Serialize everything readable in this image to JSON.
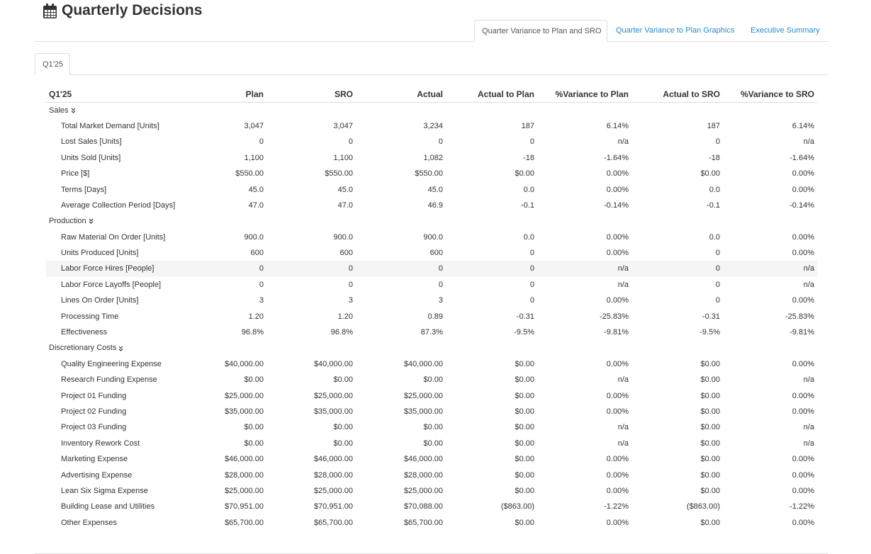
{
  "header": {
    "title": "Quarterly Decisions"
  },
  "tabs": [
    "Quarter Variance to Plan and SRO",
    "Quarter Variance to Plan Graphics",
    "Executive Summary"
  ],
  "subtabs": [
    "Q1'25"
  ],
  "table": {
    "columns": [
      "Q1'25",
      "Plan",
      "SRO",
      "Actual",
      "Actual to Plan",
      "%Variance to Plan",
      "Actual to SRO",
      "%Variance to SRO"
    ],
    "sections": [
      {
        "name": "Sales",
        "rows": [
          [
            "Total Market Demand [Units]",
            "3,047",
            "3,047",
            "3,234",
            "187",
            "6.14%",
            "187",
            "6.14%"
          ],
          [
            "Lost Sales [Units]",
            "0",
            "0",
            "0",
            "0",
            "n/a",
            "0",
            "n/a"
          ],
          [
            "Units Sold [Units]",
            "1,100",
            "1,100",
            "1,082",
            "-18",
            "-1.64%",
            "-18",
            "-1.64%"
          ],
          [
            "Price [$]",
            "$550.00",
            "$550.00",
            "$550.00",
            "$0.00",
            "0.00%",
            "$0.00",
            "0.00%"
          ],
          [
            "Terms [Days]",
            "45.0",
            "45.0",
            "45.0",
            "0.0",
            "0.00%",
            "0.0",
            "0.00%"
          ],
          [
            "Average Collection Period [Days]",
            "47.0",
            "47.0",
            "46.9",
            "-0.1",
            "-0.14%",
            "-0.1",
            "-0.14%"
          ]
        ]
      },
      {
        "name": "Production",
        "rows": [
          [
            "Raw Material On Order [Units]",
            "900.0",
            "900.0",
            "900.0",
            "0.0",
            "0.00%",
            "0.0",
            "0.00%"
          ],
          [
            "Units Produced [Units]",
            "600",
            "600",
            "600",
            "0",
            "0.00%",
            "0",
            "0.00%"
          ],
          [
            "Labor Force Hires [People]",
            "0",
            "0",
            "0",
            "0",
            "n/a",
            "0",
            "n/a"
          ],
          [
            "Labor Force Layoffs [People]",
            "0",
            "0",
            "0",
            "0",
            "n/a",
            "0",
            "n/a"
          ],
          [
            "Lines On Order [Units]",
            "3",
            "3",
            "3",
            "0",
            "0.00%",
            "0",
            "0.00%"
          ],
          [
            "Processing Time",
            "1.20",
            "1.20",
            "0.89",
            "-0.31",
            "-25.83%",
            "-0.31",
            "-25.83%"
          ],
          [
            "Effectiveness",
            "96.8%",
            "96.8%",
            "87.3%",
            "-9.5%",
            "-9.81%",
            "-9.5%",
            "-9.81%"
          ]
        ]
      },
      {
        "name": "Discretionary Costs",
        "rows": [
          [
            "Quality Engineering Expense",
            "$40,000.00",
            "$40,000.00",
            "$40,000.00",
            "$0.00",
            "0.00%",
            "$0.00",
            "0.00%"
          ],
          [
            "Research Funding Expense",
            "$0.00",
            "$0.00",
            "$0.00",
            "$0.00",
            "n/a",
            "$0.00",
            "n/a"
          ],
          [
            "Project 01 Funding",
            "$25,000.00",
            "$25,000.00",
            "$25,000.00",
            "$0.00",
            "0.00%",
            "$0.00",
            "0.00%"
          ],
          [
            "Project 02 Funding",
            "$35,000.00",
            "$35,000.00",
            "$35,000.00",
            "$0.00",
            "0.00%",
            "$0.00",
            "0.00%"
          ],
          [
            "Project 03 Funding",
            "$0.00",
            "$0.00",
            "$0.00",
            "$0.00",
            "n/a",
            "$0.00",
            "n/a"
          ],
          [
            "Inventory Rework Cost",
            "$0.00",
            "$0.00",
            "$0.00",
            "$0.00",
            "n/a",
            "$0.00",
            "n/a"
          ],
          [
            "Marketing Expense",
            "$46,000.00",
            "$46,000.00",
            "$46,000.00",
            "$0.00",
            "0.00%",
            "$0.00",
            "0.00%"
          ],
          [
            "Advertising Expense",
            "$28,000.00",
            "$28,000.00",
            "$28,000.00",
            "$0.00",
            "0.00%",
            "$0.00",
            "0.00%"
          ],
          [
            "Lean Six Sigma Expense",
            "$25,000.00",
            "$25,000.00",
            "$25,000.00",
            "$0.00",
            "0.00%",
            "$0.00",
            "0.00%"
          ],
          [
            "Building Lease and Utilities",
            "$70,951.00",
            "$70,951.00",
            "$70,088.00",
            "($863.00)",
            "-1.22%",
            "($863.00)",
            "-1.22%"
          ],
          [
            "Other Expenses",
            "$65,700.00",
            "$65,700.00",
            "$65,700.00",
            "$0.00",
            "0.00%",
            "$0.00",
            "0.00%"
          ]
        ]
      }
    ]
  }
}
